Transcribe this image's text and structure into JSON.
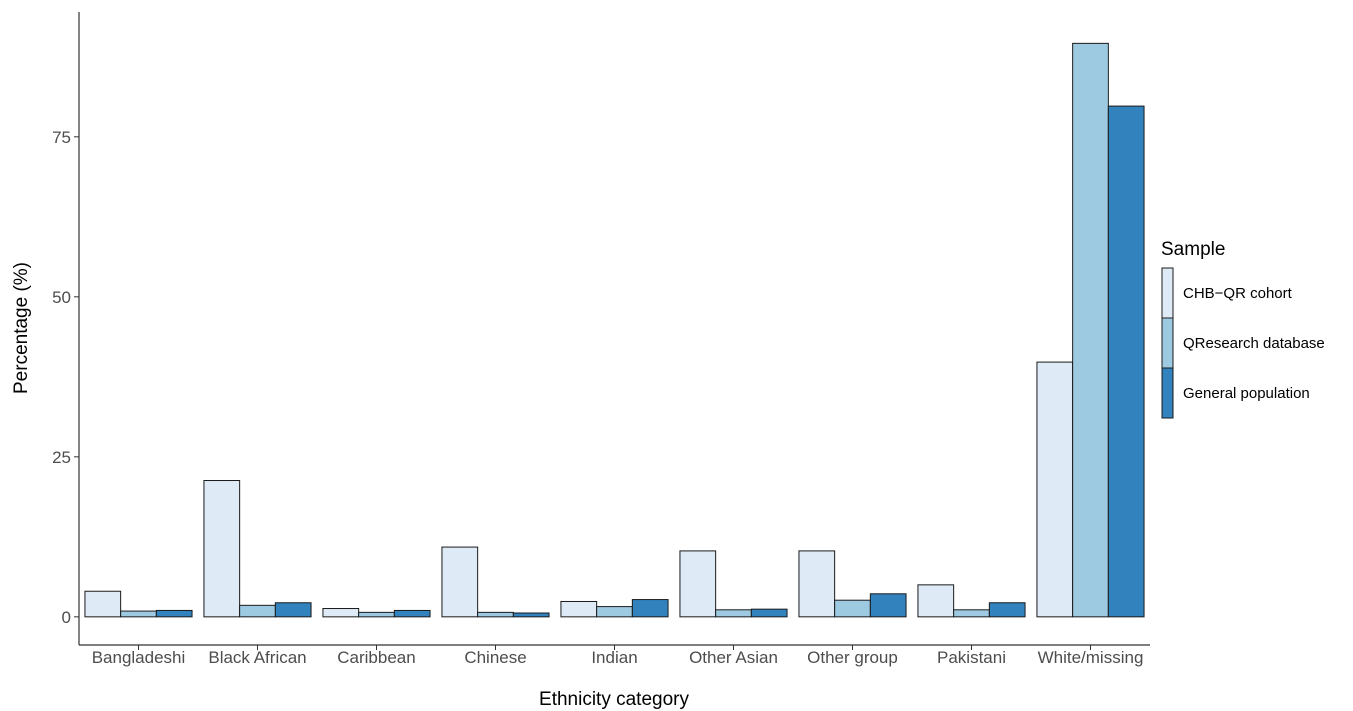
{
  "chart_data": {
    "type": "bar",
    "xlabel": "Ethnicity category",
    "ylabel": "Percentage (%)",
    "categories": [
      "Bangladeshi",
      "Black African",
      "Caribbean",
      "Chinese",
      "Indian",
      "Other Asian",
      "Other group",
      "Pakistani",
      "White/missing"
    ],
    "series": [
      {
        "name": "CHB−QR cohort",
        "color": "#deebf7",
        "values": [
          4.0,
          21.3,
          1.3,
          10.9,
          2.4,
          10.3,
          10.3,
          5.0,
          39.8
        ]
      },
      {
        "name": "QResearch database",
        "color": "#9ecae1",
        "values": [
          0.9,
          1.8,
          0.7,
          0.7,
          1.6,
          1.1,
          2.6,
          1.1,
          89.6
        ]
      },
      {
        "name": "General population",
        "color": "#3182bd",
        "values": [
          1.0,
          2.2,
          1.0,
          0.6,
          2.7,
          1.2,
          3.6,
          2.2,
          79.8
        ]
      }
    ],
    "ylim": [
      -4.4,
      94.5
    ],
    "yticks": [
      0,
      25,
      50,
      75
    ],
    "grid": false,
    "legend": {
      "title": "Sample",
      "position": "right"
    }
  }
}
